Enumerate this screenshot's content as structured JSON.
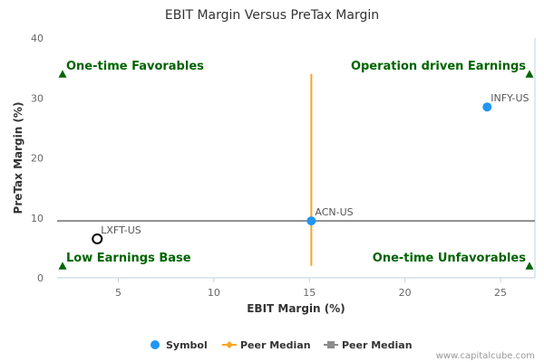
{
  "colors": {
    "symbol": "#2196f3",
    "x_median": "#f5a623",
    "y_median": "#8c8c8c",
    "quadrant": "#006400",
    "outlier_stroke": "#000000"
  },
  "chart_data": {
    "type": "scatter",
    "title": "EBIT Margin Versus PreTax Margin",
    "xlabel": "EBIT Margin (%)",
    "ylabel": "PreTax Margin (%)",
    "xlim": [
      1.8,
      26.8
    ],
    "ylim": [
      0,
      40
    ],
    "xticks": [
      5,
      10,
      15,
      20,
      25
    ],
    "yticks": [
      0,
      10,
      20,
      30,
      40
    ],
    "points": [
      {
        "label": "INFY-US",
        "x": 24.3,
        "y": 28.5,
        "style": "filled"
      },
      {
        "label": "ACN-US",
        "x": 15.1,
        "y": 9.5,
        "style": "filled"
      },
      {
        "label": "LXFT-US",
        "x": 3.9,
        "y": 6.5,
        "style": "hollow"
      }
    ],
    "x_median": {
      "value": 15.1,
      "y_range": [
        2,
        34
      ]
    },
    "y_median": {
      "value": 9.5,
      "x_range": [
        1.8,
        26.8
      ]
    },
    "quadrants": [
      {
        "label": "One-time Favorables",
        "position": "top-left",
        "marker_y": 34
      },
      {
        "label": "Operation driven Earnings",
        "position": "top-right",
        "marker_y": 34
      },
      {
        "label": "Low Earnings Base",
        "position": "bottom-left",
        "marker_y": 2
      },
      {
        "label": "One-time Unfavorables",
        "position": "bottom-right",
        "marker_y": 2
      }
    ],
    "legend": {
      "placement": "bottom",
      "items": [
        {
          "label": "Symbol",
          "kind": "symbol"
        },
        {
          "label": "Peer Median",
          "kind": "x_median"
        },
        {
          "label": "Peer Median",
          "kind": "y_median"
        }
      ]
    },
    "credit": "www.capitalcube.com"
  }
}
